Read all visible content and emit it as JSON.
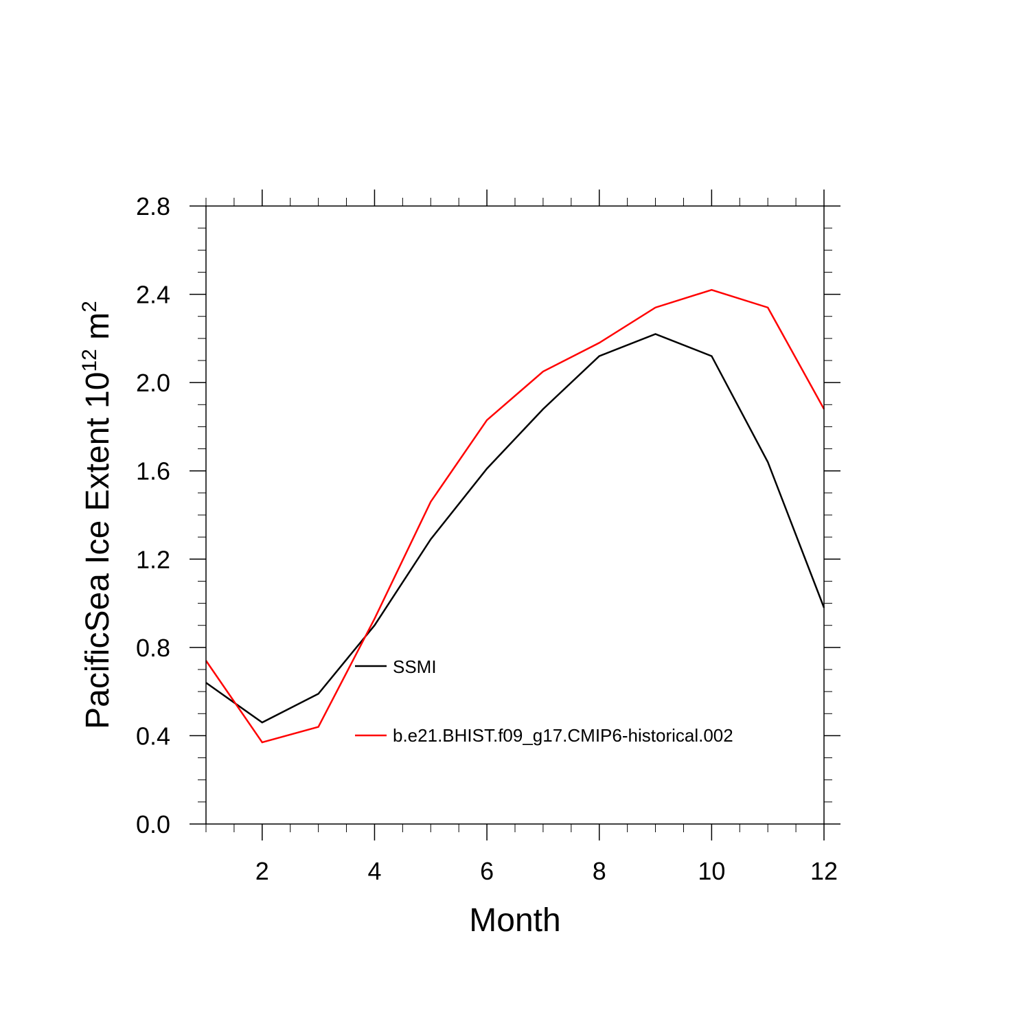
{
  "chart_data": {
    "type": "line",
    "title": "",
    "xlabel": "Month",
    "ylabel": {
      "prefix": "PacificSea Ice Extent 10",
      "exp": "12",
      "unit": " m",
      "unit_exp": "2"
    },
    "xlim": [
      1,
      12
    ],
    "ylim": [
      0.0,
      2.8
    ],
    "x_ticks": [
      2,
      4,
      6,
      8,
      10,
      12
    ],
    "x_tick_labels": [
      "2",
      "4",
      "6",
      "8",
      "10",
      "12"
    ],
    "y_ticks": [
      0.0,
      0.4,
      0.8,
      1.2,
      1.6,
      2.0,
      2.4,
      2.8
    ],
    "y_tick_labels": [
      "0.0",
      "0.4",
      "0.8",
      "1.2",
      "1.6",
      "2.0",
      "2.4",
      "2.8"
    ],
    "grid": false,
    "legend_position": "center-right inside plot",
    "x": [
      1,
      2,
      3,
      4,
      5,
      6,
      7,
      8,
      9,
      10,
      11,
      12
    ],
    "series": [
      {
        "name": "SSMI",
        "color": "#000000",
        "values": [
          0.64,
          0.46,
          0.59,
          0.9,
          1.29,
          1.61,
          1.88,
          2.12,
          2.22,
          2.12,
          1.64,
          0.98
        ]
      },
      {
        "name": "b.e21.BHIST.f09_g17.CMIP6-historical.002",
        "color": "#ff0000",
        "values": [
          0.74,
          0.37,
          0.44,
          0.93,
          1.46,
          1.83,
          2.05,
          2.18,
          2.34,
          2.42,
          2.34,
          1.88
        ]
      }
    ]
  }
}
